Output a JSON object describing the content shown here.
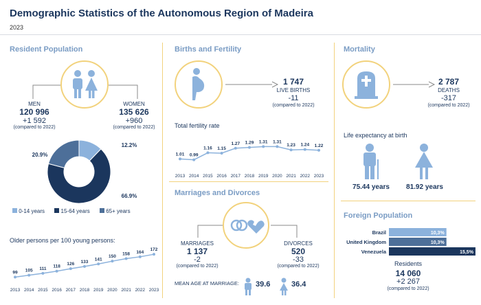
{
  "title": "Demographic Statistics of the Autonomous Region of Madeira",
  "year": "2023",
  "colors": {
    "dark": "#1b365d",
    "mid": "#4d6f99",
    "light": "#8cb2dc",
    "accent": "#7a9cc4",
    "gold": "#f2d27c"
  },
  "resident": {
    "title": "Resident Population",
    "men_label": "MEN",
    "men_value": "120 996",
    "men_change": "+1 592",
    "men_note": "(compared to 2022)",
    "women_label": "WOMEN",
    "women_value": "135 626",
    "women_change": "+960",
    "women_note": "(compared to 2022)",
    "legend": [
      "0-14 years",
      "15-64 years",
      "65+ years"
    ],
    "older_label": "Older persons per 100 young persons:"
  },
  "births": {
    "title": "Births and Fertility",
    "value": "1 747",
    "label": "LIVE BIRTHS",
    "change": "-11",
    "note": "(compared to 2022)",
    "tfr_label": "Total fertility rate"
  },
  "marriages": {
    "title": "Marriages and Divorces",
    "marriages_label": "MARRIAGES",
    "marriages_value": "1 137",
    "marriages_change": "-2",
    "marriages_note": "(compared to 2022)",
    "divorces_label": "DIVORCES",
    "divorces_value": "520",
    "divorces_change": "-33",
    "divorces_note": "(compared to 2022)",
    "mean_age_label": "MEAN AGE AT MARRIAGE:",
    "men_age": "39.6",
    "women_age": "36.4"
  },
  "mortality": {
    "title": "Mortality",
    "value": "2 787",
    "label": "DEATHS",
    "change": "-317",
    "note": "(compared to 2022)",
    "life_label": "Life expectancy at birth",
    "men_years": "75.44 years",
    "women_years": "81.92 years"
  },
  "foreign": {
    "title": "Foreign Population",
    "residents_label": "Residents",
    "residents_value": "14 060",
    "residents_change": "+2 267",
    "residents_note": "(compared to 2022)"
  },
  "chart_data": [
    {
      "type": "pie",
      "categories": [
        "0-14 years",
        "15-64 years",
        "65+ years"
      ],
      "values": [
        12.2,
        66.9,
        20.9
      ],
      "labels": [
        "12.2%",
        "66.9%",
        "20.9%"
      ],
      "colors": [
        "#8cb2dc",
        "#1b365d",
        "#4d6f99"
      ]
    },
    {
      "type": "line",
      "title": "Older persons per 100 young persons:",
      "x": [
        "2013",
        "2014",
        "2015",
        "2016",
        "2017",
        "2018",
        "2019",
        "2020",
        "2021",
        "2022",
        "2023"
      ],
      "values": [
        99,
        105,
        111,
        118,
        126,
        133,
        141,
        150,
        158,
        164,
        172
      ],
      "ylim": [
        80,
        190
      ]
    },
    {
      "type": "line",
      "title": "Total fertility rate",
      "x": [
        "2013",
        "2014",
        "2015",
        "2016",
        "2017",
        "2018",
        "2019",
        "2020",
        "2021",
        "2022",
        "2023"
      ],
      "values": [
        1.01,
        0.99,
        1.16,
        1.15,
        1.27,
        1.29,
        1.31,
        1.31,
        1.23,
        1.24,
        1.22
      ],
      "ylim": [
        0.8,
        1.5
      ]
    },
    {
      "type": "bar",
      "categories": [
        "Brazil",
        "United Kingdom",
        "Venezuela"
      ],
      "values": [
        10.3,
        10.3,
        15.5
      ],
      "labels": [
        "10,3%",
        "10,3%",
        "15,5%"
      ],
      "colors": [
        "#8cb2dc",
        "#4d6f99",
        "#1b365d"
      ]
    }
  ]
}
